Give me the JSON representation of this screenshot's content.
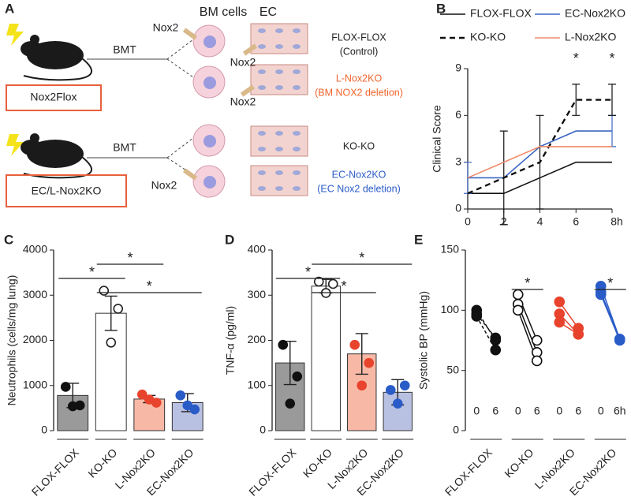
{
  "diagram": {
    "panel": "A",
    "bm_cells": "BM cells",
    "ec": "EC",
    "bmt_1": "BMT",
    "bmt_2": "BMT",
    "nox2_1": "Nox2",
    "nox2_2": "Nox2",
    "nox2_3": "Nox2",
    "nox2_4": "Nox2",
    "donor_1": "Nox2Flox",
    "donor_2": "EC/L-Nox2KO",
    "outcome_1": "FLOX-FLOX",
    "outcome_1_note": "(Control)",
    "outcome_2": "L-Nox2KO",
    "outcome_2_note": "(BM NOX2 deletion)",
    "outcome_3": "KO-KO",
    "outcome_4": "EC-Nox2KO",
    "outcome_4_note": "(EC Nox2 deletion)"
  },
  "chart_data": [
    {
      "type": "line",
      "panel": "B",
      "y_label": "Clinical Score",
      "x": [
        0,
        2,
        4,
        6,
        8
      ],
      "xlim": [
        0,
        8
      ],
      "xticks": [
        0,
        2,
        4,
        6,
        {
          "value": 8,
          "label": "8h"
        }
      ],
      "ylim": [
        0,
        9
      ],
      "yticks": [
        0,
        3,
        6,
        9
      ],
      "series": [
        {
          "name": "FLOX-FLOX",
          "color": "#111111",
          "dashed": false,
          "values": [
            1,
            1,
            2,
            3,
            3
          ]
        },
        {
          "name": "EC-Nox2KO",
          "color": "#3b66c4",
          "dashed": false,
          "values": [
            2,
            2,
            4,
            5,
            5
          ],
          "errors": [
            1,
            null,
            null,
            null,
            1
          ]
        },
        {
          "name": "KO-KO",
          "color": "#111111",
          "dashed": true,
          "values": [
            1,
            2,
            3,
            7,
            7
          ],
          "errors": [
            null,
            3,
            3,
            1,
            1
          ]
        },
        {
          "name": "L-Nox2KO",
          "color": "#f08a6a",
          "dashed": false,
          "values": [
            2,
            3,
            4,
            4,
            4
          ]
        }
      ],
      "annotations": [
        {
          "text": "*",
          "x": 6
        },
        {
          "text": "*",
          "x": 8
        }
      ]
    },
    {
      "type": "bar",
      "panel": "C",
      "y_label": "Neutrophils (cells/mg lung)",
      "categories": [
        "FLOX-FLOX",
        "KO-KO",
        "L-Nox2KO",
        "EC-Nox2KO"
      ],
      "values": [
        780,
        2600,
        700,
        620
      ],
      "errors": [
        270,
        380,
        80,
        200
      ],
      "colors": [
        "#9a9a9a",
        "#ffffff",
        "#f7b9a6",
        "#b9c1e3"
      ],
      "point_colors": [
        "#111111",
        "#ffffff",
        "#e8432d",
        "#2a5cc8"
      ],
      "points": [
        [
          970,
          560,
          540
        ],
        [
          3100,
          2700,
          1950
        ],
        [
          800,
          620,
          690
        ],
        [
          780,
          470,
          560
        ]
      ],
      "ylim": [
        0,
        4000
      ],
      "yticks": [
        0,
        1000,
        2000,
        3000,
        4000
      ],
      "significance": [
        {
          "text": "*",
          "between": [
            "KO-KO",
            "L-Nox2KO"
          ]
        },
        {
          "text": "*",
          "between": [
            "FLOX-FLOX",
            "KO-KO"
          ]
        },
        {
          "text": "*",
          "between": [
            "KO-KO",
            "EC-Nox2KO"
          ]
        }
      ]
    },
    {
      "type": "bar",
      "panel": "D",
      "y_label": "TNF-α (pg/ml)",
      "categories": [
        "FLOX-FLOX",
        "KO-KO",
        "L-Nox2KO",
        "EC-Nox2KO"
      ],
      "values": [
        150,
        320,
        170,
        85
      ],
      "errors": [
        48,
        15,
        45,
        28
      ],
      "colors": [
        "#9a9a9a",
        "#ffffff",
        "#f7b9a6",
        "#b9c1e3"
      ],
      "point_colors": [
        "#111111",
        "#ffffff",
        "#e8432d",
        "#2a5cc8"
      ],
      "points": [
        [
          190,
          120,
          60
        ],
        [
          330,
          325,
          305
        ],
        [
          190,
          150,
          100
        ],
        [
          90,
          100,
          60
        ]
      ],
      "ylim": [
        0,
        400
      ],
      "yticks": [
        0,
        100,
        200,
        300,
        400
      ],
      "significance": [
        {
          "text": "*",
          "between": [
            "KO-KO",
            "EC-Nox2KO"
          ]
        },
        {
          "text": "*",
          "between": [
            "FLOX-FLOX",
            "KO-KO"
          ]
        },
        {
          "text": "*",
          "between": [
            "KO-KO",
            "L-Nox2KO"
          ]
        }
      ]
    },
    {
      "type": "paired",
      "panel": "E",
      "y_label": "Systolic BP (mmHg)",
      "ylim": [
        0,
        150
      ],
      "yticks": [
        0,
        50,
        100,
        150
      ],
      "groups": [
        {
          "name": "FLOX-FLOX",
          "color": "#111111",
          "open": false,
          "dashed": true,
          "tick_labels": [
            "0",
            "6"
          ],
          "before": [
            97,
            100,
            95
          ],
          "after": [
            77,
            75,
            67
          ]
        },
        {
          "name": "KO-KO",
          "color": "#111111",
          "open": true,
          "dashed": false,
          "tick_labels": [
            "0",
            "6"
          ],
          "before": [
            113,
            105,
            100
          ],
          "after": [
            75,
            65,
            58
          ],
          "annotation": "*"
        },
        {
          "name": "L-Nox2KO",
          "color": "#e8432d",
          "open": false,
          "dashed": false,
          "tick_labels": [
            "0",
            "6"
          ],
          "before": [
            107,
            97,
            90
          ],
          "after": [
            85,
            80,
            80
          ]
        },
        {
          "name": "EC-Nox2KO",
          "color": "#2a5cc8",
          "open": false,
          "dashed": false,
          "tick_labels": [
            "0",
            "6h"
          ],
          "before": [
            120,
            115,
            113
          ],
          "after": [
            76,
            76,
            75
          ],
          "annotation": "*"
        }
      ]
    }
  ]
}
